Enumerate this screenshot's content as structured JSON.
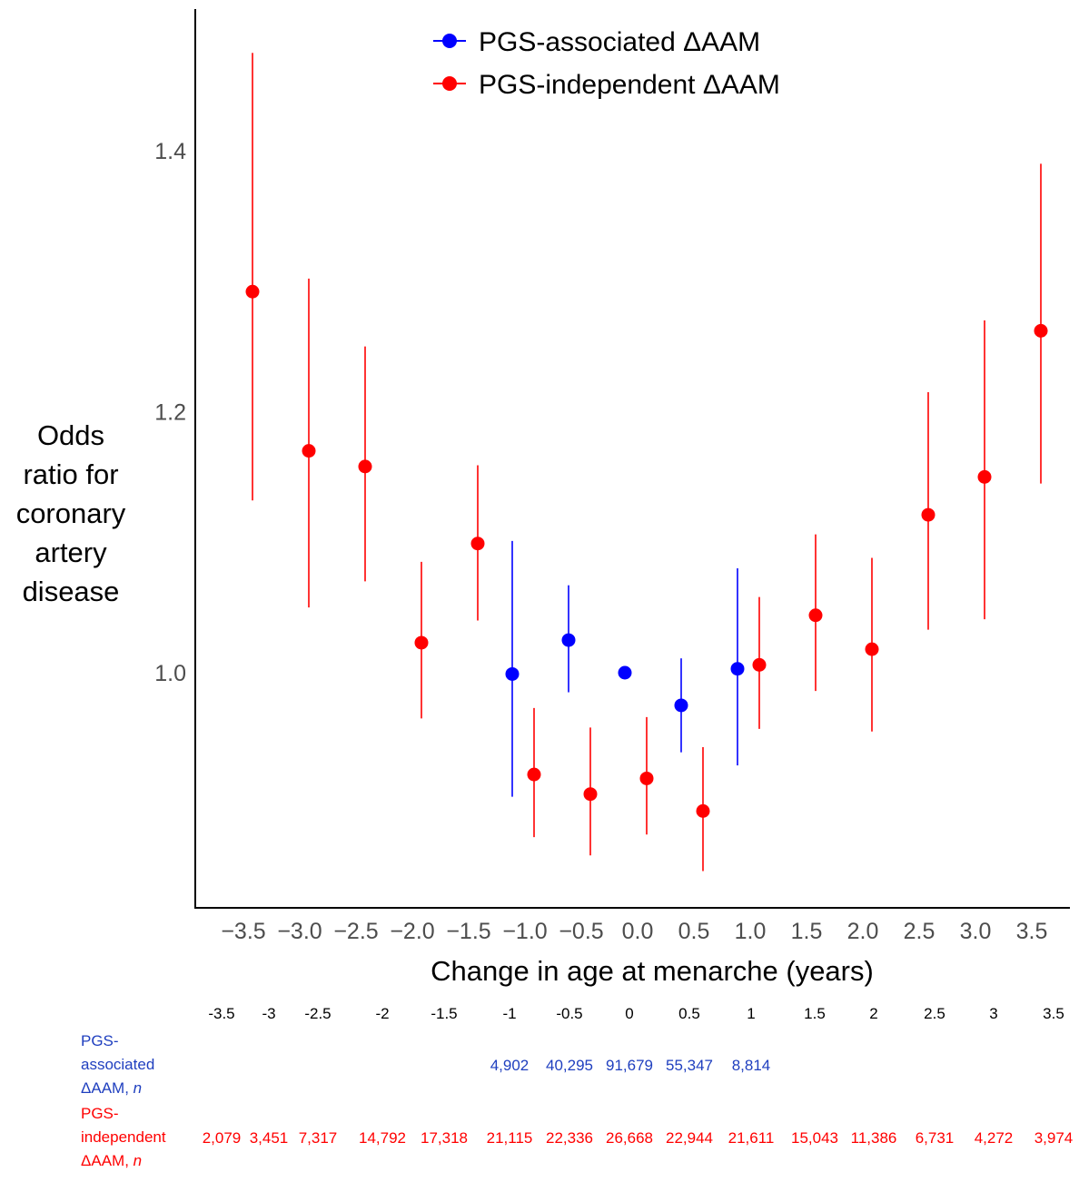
{
  "chart_data": {
    "type": "scatter",
    "xlabel": "Change in age at menarche (years)",
    "ylabel_lines": [
      "Odds",
      "ratio for",
      "coronary",
      "artery",
      "disease"
    ],
    "x_ticks": [
      "−3.5",
      "−3.0",
      "−2.5",
      "−2.0",
      "−1.5",
      "−1.0",
      "−0.5",
      "0.0",
      "0.5",
      "1.0",
      "1.5",
      "2.0",
      "2.5",
      "3.0",
      "3.5"
    ],
    "y_ticks": [
      "1.0",
      "1.2",
      "1.4"
    ],
    "xlim": [
      -3.95,
      3.95
    ],
    "ylim": [
      0.83,
      1.54
    ],
    "grid": false,
    "legend_position": "top-center",
    "series": [
      {
        "name": "PGS-associated ΔAAM",
        "color": "#0000ff",
        "points": [
          {
            "x": -1.0,
            "y": 0.999,
            "lo": 0.905,
            "hi": 1.101
          },
          {
            "x": -0.5,
            "y": 1.025,
            "lo": 0.985,
            "hi": 1.067
          },
          {
            "x": 0.0,
            "y": 1.0,
            "lo": 1.0,
            "hi": 1.0
          },
          {
            "x": 0.5,
            "y": 0.975,
            "lo": 0.939,
            "hi": 1.011
          },
          {
            "x": 1.0,
            "y": 1.003,
            "lo": 0.929,
            "hi": 1.08
          }
        ]
      },
      {
        "name": "PGS-independent ΔAAM",
        "color": "#ff0000",
        "points": [
          {
            "x": -3.5,
            "y": 1.292,
            "lo": 1.132,
            "hi": 1.475
          },
          {
            "x": -3.0,
            "y": 1.17,
            "lo": 1.05,
            "hi": 1.302
          },
          {
            "x": -2.5,
            "y": 1.158,
            "lo": 1.07,
            "hi": 1.25
          },
          {
            "x": -2.0,
            "y": 1.023,
            "lo": 0.965,
            "hi": 1.085
          },
          {
            "x": -1.5,
            "y": 1.099,
            "lo": 1.04,
            "hi": 1.159
          },
          {
            "x": -1.0,
            "y": 0.922,
            "lo": 0.874,
            "hi": 0.973
          },
          {
            "x": -0.5,
            "y": 0.907,
            "lo": 0.86,
            "hi": 0.958
          },
          {
            "x": 0.0,
            "y": 0.919,
            "lo": 0.876,
            "hi": 0.966
          },
          {
            "x": 0.5,
            "y": 0.894,
            "lo": 0.848,
            "hi": 0.943
          },
          {
            "x": 1.0,
            "y": 1.006,
            "lo": 0.957,
            "hi": 1.058
          },
          {
            "x": 1.5,
            "y": 1.044,
            "lo": 0.986,
            "hi": 1.106
          },
          {
            "x": 2.0,
            "y": 1.018,
            "lo": 0.955,
            "hi": 1.088
          },
          {
            "x": 2.5,
            "y": 1.121,
            "lo": 1.033,
            "hi": 1.215
          },
          {
            "x": 3.0,
            "y": 1.15,
            "lo": 1.041,
            "hi": 1.27
          },
          {
            "x": 3.5,
            "y": 1.262,
            "lo": 1.145,
            "hi": 1.39
          }
        ]
      }
    ],
    "table": {
      "columns": [
        "-3.5",
        "-3",
        "-2.5",
        "-2",
        "-1.5",
        "-1",
        "-0.5",
        "0",
        "0.5",
        "1",
        "1.5",
        "2",
        "2.5",
        "3",
        "3.5"
      ],
      "rows": [
        {
          "label_lines": [
            "PGS-",
            "associated",
            "ΔAAM, "
          ],
          "label_italic": "n",
          "color": "#1f3fbf",
          "values": [
            "",
            "",
            "",
            "",
            "",
            "4,902",
            "40,295",
            "91,679",
            "55,347",
            "8,814",
            "",
            "",
            "",
            "",
            ""
          ]
        },
        {
          "label_lines": [
            "PGS-",
            "independent",
            "ΔAAM, "
          ],
          "label_italic": "n",
          "color": "#ff0000",
          "values": [
            "2,079",
            "3,451",
            "7,317",
            "14,792",
            "17,318",
            "21,115",
            "22,336",
            "26,668",
            "22,944",
            "21,611",
            "15,043",
            "11,386",
            "6,731",
            "4,272",
            "3,974"
          ]
        }
      ]
    }
  }
}
